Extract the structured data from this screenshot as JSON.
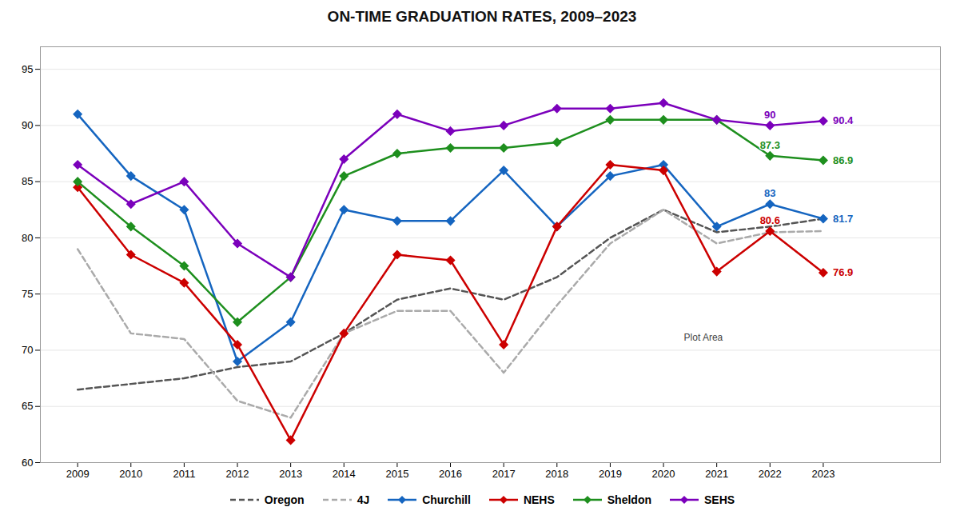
{
  "chart_data": {
    "type": "line",
    "title": "ON-TIME GRADUATION RATES, 2009–2023",
    "x": [
      2009,
      2010,
      2011,
      2012,
      2013,
      2014,
      2015,
      2016,
      2017,
      2018,
      2019,
      2020,
      2021,
      2022,
      2023
    ],
    "series": [
      {
        "name": "Oregon",
        "color": "#555555",
        "line_style": "dashed",
        "values": [
          66.5,
          67.0,
          67.5,
          68.5,
          69.0,
          71.5,
          74.5,
          75.5,
          74.5,
          76.5,
          80.0,
          82.5,
          80.5,
          81.0,
          81.7
        ]
      },
      {
        "name": "4J",
        "color": "#aaaaaa",
        "line_style": "dashed",
        "values": [
          79.0,
          71.5,
          71.0,
          65.5,
          64.0,
          71.5,
          73.5,
          73.5,
          68.0,
          74.0,
          79.5,
          82.5,
          79.5,
          80.5,
          80.6
        ]
      },
      {
        "name": "Churchill",
        "color": "#1565c0",
        "line_style": "solid",
        "marker": "diamond",
        "values": [
          91.0,
          85.5,
          82.5,
          69.0,
          72.5,
          82.5,
          81.5,
          81.5,
          86.0,
          81.0,
          85.5,
          86.5,
          81.0,
          83.0,
          81.7
        ],
        "value_labels": [
          null,
          null,
          null,
          null,
          null,
          null,
          null,
          null,
          null,
          null,
          null,
          null,
          null,
          "83",
          "81.7"
        ]
      },
      {
        "name": "NEHS",
        "color": "#cc0000",
        "line_style": "solid",
        "marker": "diamond",
        "values": [
          84.5,
          78.5,
          76.0,
          70.5,
          62.0,
          71.5,
          78.5,
          78.0,
          70.5,
          81.0,
          86.5,
          86.0,
          77.0,
          80.6,
          76.9
        ],
        "value_labels": [
          null,
          null,
          null,
          null,
          null,
          null,
          null,
          null,
          null,
          null,
          null,
          null,
          null,
          "80.6",
          "76.9"
        ]
      },
      {
        "name": "Sheldon",
        "color": "#1e8f1e",
        "line_style": "solid",
        "marker": "diamond",
        "values": [
          85.0,
          81.0,
          77.5,
          72.5,
          76.5,
          85.5,
          87.5,
          88.0,
          88.0,
          88.5,
          90.5,
          90.5,
          90.5,
          87.3,
          86.9
        ],
        "value_labels": [
          null,
          null,
          null,
          null,
          null,
          null,
          null,
          null,
          null,
          null,
          null,
          null,
          null,
          "87.3",
          "86.9"
        ]
      },
      {
        "name": "SEHS",
        "color": "#7b00bb",
        "line_style": "solid",
        "marker": "diamond",
        "values": [
          86.5,
          83.0,
          85.0,
          79.5,
          76.5,
          87.0,
          91.0,
          89.5,
          90.0,
          91.5,
          91.5,
          92.0,
          90.5,
          90.0,
          90.4
        ],
        "value_labels": [
          null,
          null,
          null,
          null,
          null,
          null,
          null,
          null,
          null,
          null,
          null,
          null,
          null,
          "90",
          "90.4"
        ]
      }
    ],
    "xlim": [
      2008.3,
      2025.2
    ],
    "xticks": [
      2009,
      2010,
      2011,
      2012,
      2013,
      2014,
      2015,
      2016,
      2017,
      2018,
      2019,
      2020,
      2021,
      2022,
      2023
    ],
    "ylim": [
      60,
      97
    ],
    "yticks": [
      60,
      65,
      70,
      75,
      80,
      85,
      90,
      95
    ],
    "grid": "y",
    "legend": "bottom",
    "annotations": [
      {
        "text": "Plot Area"
      }
    ]
  }
}
